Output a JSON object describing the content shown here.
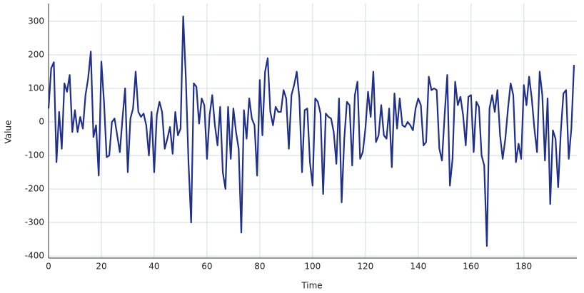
{
  "chart_data": {
    "type": "line",
    "x_label": "Time",
    "y_label": "Value",
    "x": [
      0,
      1,
      2,
      3,
      4,
      5,
      6,
      7,
      8,
      9,
      10,
      11,
      12,
      13,
      14,
      15,
      16,
      17,
      18,
      19,
      20,
      21,
      22,
      23,
      24,
      25,
      26,
      27,
      28,
      29,
      30,
      31,
      32,
      33,
      34,
      35,
      36,
      37,
      38,
      39,
      40,
      41,
      42,
      43,
      44,
      45,
      46,
      47,
      48,
      49,
      50,
      51,
      52,
      53,
      54,
      55,
      56,
      57,
      58,
      59,
      60,
      61,
      62,
      63,
      64,
      65,
      66,
      67,
      68,
      69,
      70,
      71,
      72,
      73,
      74,
      75,
      76,
      77,
      78,
      79,
      80,
      81,
      82,
      83,
      84,
      85,
      86,
      87,
      88,
      89,
      90,
      91,
      92,
      93,
      94,
      95,
      96,
      97,
      98,
      99,
      100,
      101,
      102,
      103,
      104,
      105,
      106,
      107,
      108,
      109,
      110,
      111,
      112,
      113,
      114,
      115,
      116,
      117,
      118,
      119,
      120,
      121,
      122,
      123,
      124,
      125,
      126,
      127,
      128,
      129,
      130,
      131,
      132,
      133,
      134,
      135,
      136,
      137,
      138,
      139,
      140,
      141,
      142,
      143,
      144,
      145,
      146,
      147,
      148,
      149,
      150,
      151,
      152,
      153,
      154,
      155,
      156,
      157,
      158,
      159,
      160,
      161,
      162,
      163,
      164,
      165,
      166,
      167,
      168,
      169,
      170,
      171,
      172,
      173,
      174,
      175,
      176,
      177,
      178,
      179,
      180,
      181,
      182,
      183,
      184,
      185,
      186,
      187,
      188,
      189,
      190,
      191,
      192,
      193,
      194,
      195,
      196,
      197,
      198,
      199
    ],
    "series": [
      {
        "color": "#1f2f8a",
        "values": [
          40,
          160,
          178,
          -120,
          30,
          -80,
          115,
          90,
          140,
          -30,
          35,
          -30,
          15,
          -20,
          80,
          130,
          210,
          -45,
          -10,
          -160,
          180,
          60,
          -105,
          -100,
          0,
          10,
          -40,
          -90,
          10,
          100,
          -150,
          10,
          40,
          150,
          30,
          15,
          25,
          -10,
          -100,
          30,
          -150,
          20,
          60,
          30,
          -80,
          -50,
          -15,
          -95,
          30,
          -40,
          -20,
          315,
          130,
          -120,
          -300,
          115,
          105,
          -5,
          70,
          50,
          -110,
          20,
          80,
          -10,
          -70,
          45,
          -150,
          -200,
          45,
          -110,
          40,
          -30,
          -80,
          -330,
          35,
          -50,
          70,
          10,
          -10,
          -160,
          125,
          -40,
          150,
          190,
          30,
          -10,
          45,
          30,
          30,
          95,
          70,
          -80,
          80,
          110,
          150,
          70,
          -150,
          35,
          40,
          -120,
          -190,
          70,
          60,
          25,
          -215,
          25,
          15,
          10,
          -30,
          -125,
          70,
          -240,
          -50,
          60,
          50,
          -130,
          80,
          120,
          -110,
          -90,
          -20,
          90,
          15,
          150,
          -60,
          -40,
          50,
          -40,
          -50,
          40,
          -135,
          85,
          -20,
          70,
          -10,
          -15,
          0,
          -10,
          -25,
          40,
          70,
          50,
          -70,
          -60,
          135,
          95,
          100,
          95,
          -80,
          -115,
          20,
          140,
          -190,
          -110,
          120,
          50,
          75,
          20,
          -70,
          75,
          80,
          -90,
          60,
          45,
          -100,
          -130,
          -370,
          40,
          80,
          30,
          95,
          -40,
          -110,
          -50,
          40,
          115,
          80,
          -120,
          -65,
          -110,
          110,
          50,
          135,
          70,
          -20,
          -90,
          150,
          80,
          -115,
          70,
          -245,
          -25,
          -50,
          -195,
          -30,
          85,
          95,
          -110,
          -20,
          170
        ]
      }
    ],
    "xlim": [
      0,
      199
    ],
    "ylim": [
      -406,
      353
    ],
    "xticks": [
      0,
      20,
      40,
      60,
      80,
      100,
      120,
      140,
      160,
      180
    ],
    "yticks": [
      -400,
      -300,
      -200,
      -100,
      0,
      100,
      200,
      300
    ],
    "grid": true
  }
}
